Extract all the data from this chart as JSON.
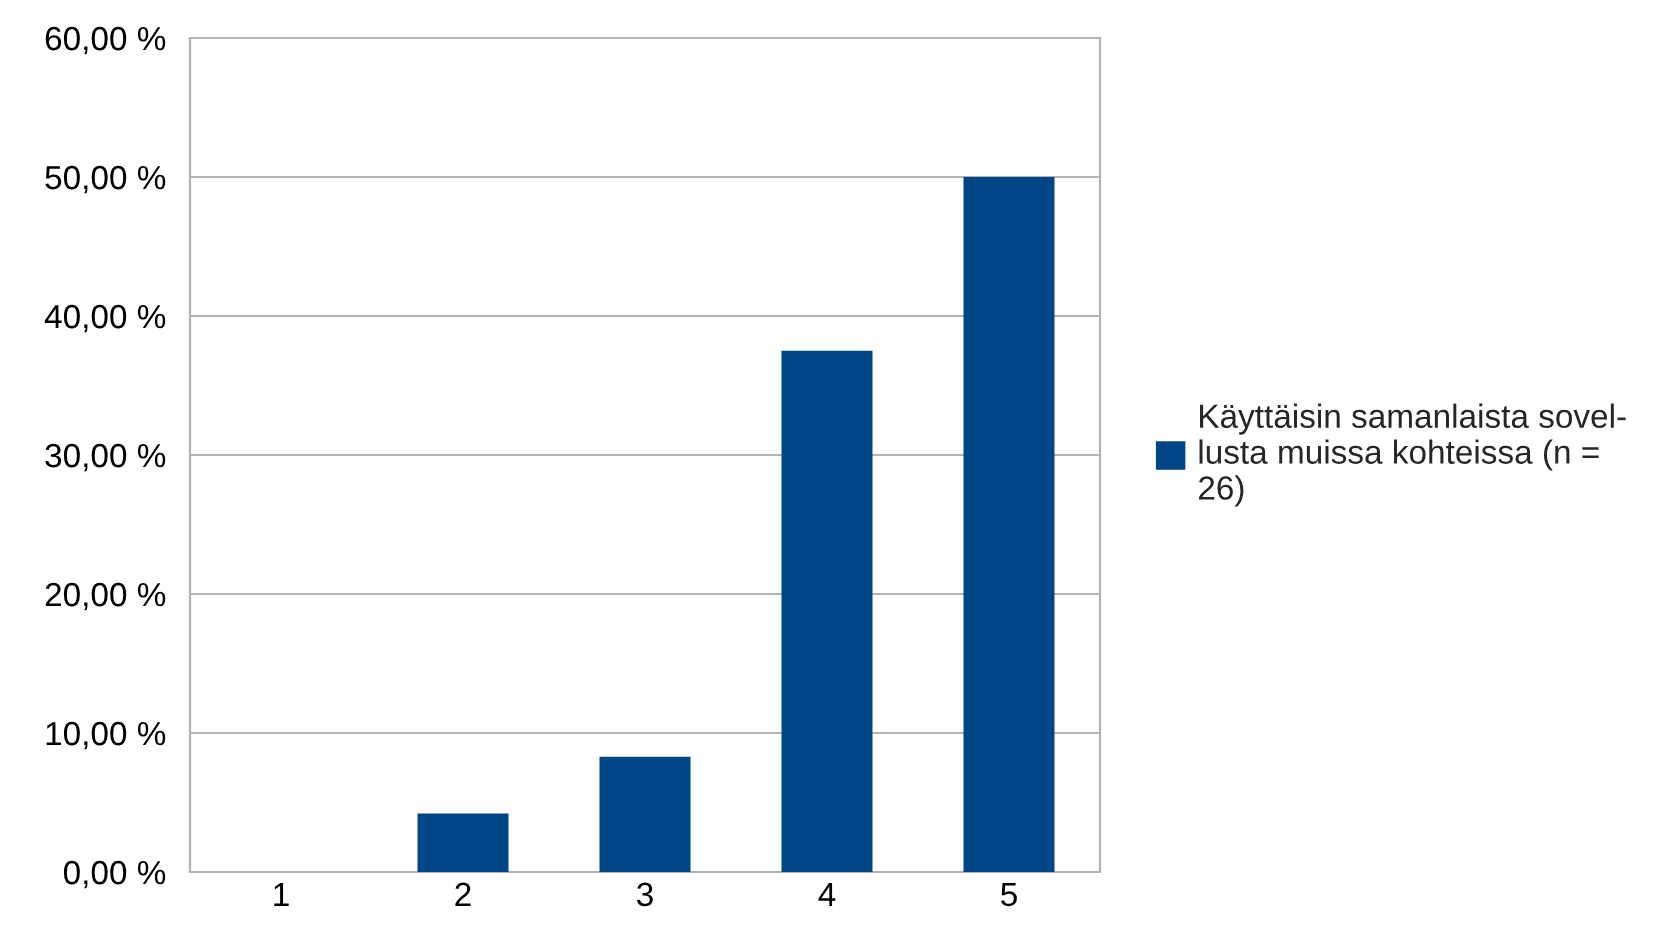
{
  "chart_data": {
    "type": "bar",
    "categories": [
      "1",
      "2",
      "3",
      "4",
      "5"
    ],
    "series": [
      {
        "name": "Käyttäisin samanlaista sovel-\nlusta muissa kohteissa (n =\n26)",
        "color": "#004586",
        "values": [
          0,
          4.2,
          8.3,
          37.5,
          50
        ]
      }
    ],
    "ylim": [
      0,
      60
    ],
    "yticks": [
      {
        "value": 0,
        "label": "0,00 %"
      },
      {
        "value": 10,
        "label": "10,00 %"
      },
      {
        "value": 20,
        "label": "20,00 %"
      },
      {
        "value": 30,
        "label": "30,00 %"
      },
      {
        "value": 40,
        "label": "40,00 %"
      },
      {
        "value": 50,
        "label": "50,00 %"
      },
      {
        "value": 60,
        "label": "60,00 %"
      }
    ],
    "grid": "y",
    "legend": "right"
  }
}
